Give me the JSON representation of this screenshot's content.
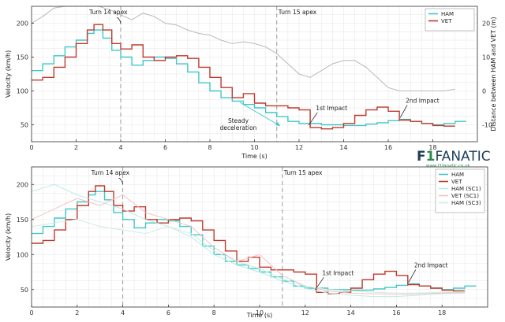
{
  "colors": {
    "ham": "#3fc7c6",
    "vet": "#c0392b",
    "ham_sc1": "#bfe9e8",
    "vet_sc1": "#f3c2c2",
    "ham_sc3": "#cdeee0",
    "distance": "#b9b9b9",
    "grid": "#e4e4e4",
    "brand_green": "#2d8a4e",
    "brand_dark": "#1f3d5c"
  },
  "branding": {
    "logo_text": "F1FANATIC",
    "url": "www.f1fanatic.co.uk"
  },
  "chart_data": [
    {
      "type": "line",
      "title": "",
      "xlabel": "Time (s)",
      "ylabel": "Velocity (km/h)",
      "y2label": "Distance between HAM and VET (m)",
      "xlim": [
        0,
        20
      ],
      "ylim": [
        25,
        225
      ],
      "y2lim": [
        -15,
        25
      ],
      "x_ticks": [
        "0",
        "2",
        "4",
        "6",
        "8",
        "10",
        "12",
        "14",
        "16",
        "18"
      ],
      "y_ticks": [
        "50",
        "100",
        "150",
        "200"
      ],
      "y2_ticks": [
        "-10",
        "0",
        "10",
        "20"
      ],
      "grid": true,
      "legend": "top-right",
      "series": [
        {
          "name": "HAM",
          "color_key": "ham",
          "x": [
            0,
            0.5,
            1,
            1.5,
            2,
            2.5,
            2.8,
            3.2,
            3.6,
            4,
            4.5,
            5,
            5.5,
            6,
            6.5,
            7,
            7.5,
            8,
            8.5,
            9,
            9.5,
            10,
            10.5,
            11,
            11.5,
            12,
            12.5,
            13,
            13.5,
            14,
            14.5,
            15,
            15.5,
            16,
            16.5,
            17,
            17.5,
            18,
            18.5,
            19,
            19.5
          ],
          "y": [
            130,
            140,
            152,
            165,
            175,
            185,
            190,
            178,
            160,
            150,
            138,
            145,
            150,
            148,
            140,
            128,
            112,
            100,
            90,
            85,
            80,
            75,
            68,
            62,
            55,
            52,
            52,
            50,
            50,
            49,
            49,
            51,
            53,
            56,
            58,
            55,
            52,
            50,
            52,
            55,
            55
          ]
        },
        {
          "name": "VET",
          "color_key": "vet",
          "x": [
            0,
            0.5,
            1,
            1.5,
            2,
            2.5,
            2.8,
            3.2,
            3.6,
            4,
            4.5,
            5,
            5.5,
            6,
            6.5,
            7,
            7.5,
            8,
            8.5,
            9,
            9.5,
            10,
            10.5,
            11,
            11.5,
            12,
            12.5,
            13,
            13.5,
            14,
            14.5,
            15,
            15.5,
            16,
            16.5,
            17,
            17.5,
            18,
            18.5,
            19
          ],
          "y": [
            116,
            120,
            135,
            150,
            170,
            190,
            198,
            190,
            170,
            162,
            168,
            150,
            145,
            150,
            152,
            148,
            135,
            120,
            105,
            90,
            96,
            82,
            78,
            78,
            75,
            72,
            46,
            44,
            46,
            52,
            64,
            72,
            76,
            70,
            57,
            55,
            52,
            49,
            48,
            48
          ]
        }
      ],
      "secondary_series": [
        {
          "name": "Distance between HAM and VET",
          "color_key": "distance",
          "x": [
            0,
            0.5,
            1,
            1.5,
            2,
            2.5,
            3,
            3.5,
            4,
            4.5,
            5,
            5.5,
            6,
            6.5,
            7,
            7.5,
            8,
            8.5,
            9,
            9.5,
            10,
            10.5,
            11,
            11.5,
            12,
            12.5,
            13,
            13.5,
            14,
            14.5,
            15,
            15.5,
            16,
            16.5,
            17,
            17.5,
            18,
            18.5,
            19
          ],
          "y": [
            20,
            22,
            24.5,
            26,
            26.5,
            26,
            25,
            24,
            22.5,
            21,
            23,
            22,
            20,
            19.5,
            18,
            17,
            16.5,
            15,
            14,
            14.5,
            14,
            13,
            11,
            8,
            5,
            4,
            6,
            8,
            9,
            9,
            7,
            4,
            1,
            0,
            0,
            0,
            0,
            0,
            0.5
          ]
        }
      ],
      "annotations": [
        {
          "text": "Turn 14 apex",
          "x": 4
        },
        {
          "text": "Turn 15 apex",
          "x": 11
        },
        {
          "text": "Steady deceleration",
          "x": 10
        },
        {
          "text": "1st Impact",
          "x": 12.4
        },
        {
          "text": "2nd Impact",
          "x": 16.5
        }
      ]
    },
    {
      "type": "line",
      "title": "",
      "xlabel": "Time (s)",
      "ylabel": "Velocity (km/h)",
      "xlim": [
        0,
        20
      ],
      "ylim": [
        25,
        225
      ],
      "x_ticks": [
        "0",
        "2",
        "4",
        "6",
        "8",
        "10",
        "12",
        "14",
        "16",
        "18"
      ],
      "y_ticks": [
        "50",
        "100",
        "150",
        "200"
      ],
      "grid": true,
      "legend": "top-right",
      "series": [
        {
          "name": "HAM",
          "color_key": "ham",
          "x": [
            0,
            0.5,
            1,
            1.5,
            2,
            2.5,
            2.8,
            3.2,
            3.6,
            4,
            4.5,
            5,
            5.5,
            6,
            6.5,
            7,
            7.5,
            8,
            8.5,
            9,
            9.5,
            10,
            10.5,
            11,
            11.5,
            12,
            12.5,
            13,
            13.5,
            14,
            14.5,
            15,
            15.5,
            16,
            16.5,
            17,
            17.5,
            18,
            18.5,
            19,
            19.5
          ],
          "y": [
            130,
            140,
            152,
            165,
            175,
            185,
            190,
            178,
            160,
            150,
            138,
            145,
            150,
            148,
            140,
            128,
            112,
            100,
            90,
            85,
            80,
            75,
            68,
            62,
            55,
            52,
            52,
            50,
            50,
            49,
            49,
            51,
            53,
            56,
            58,
            55,
            52,
            50,
            52,
            55,
            55
          ]
        },
        {
          "name": "VET",
          "color_key": "vet",
          "x": [
            0,
            0.5,
            1,
            1.5,
            2,
            2.5,
            2.8,
            3.2,
            3.6,
            4,
            4.5,
            5,
            5.5,
            6,
            6.5,
            7,
            7.5,
            8,
            8.5,
            9,
            9.5,
            10,
            10.5,
            11,
            11.5,
            12,
            12.5,
            13,
            13.5,
            14,
            14.5,
            15,
            15.5,
            16,
            16.5,
            17,
            17.5,
            18,
            18.5,
            19
          ],
          "y": [
            116,
            120,
            135,
            150,
            170,
            190,
            198,
            190,
            170,
            162,
            168,
            150,
            145,
            150,
            152,
            148,
            135,
            120,
            105,
            90,
            96,
            82,
            78,
            78,
            75,
            72,
            46,
            44,
            46,
            52,
            64,
            72,
            76,
            70,
            57,
            55,
            52,
            49,
            48,
            48
          ]
        },
        {
          "name": "HAM (SC1)",
          "color_key": "ham_sc1",
          "x": [
            0,
            1,
            2,
            3,
            4,
            5,
            6,
            7,
            8,
            9,
            10,
            11,
            12,
            13,
            14,
            15,
            16,
            17,
            18,
            19
          ],
          "y": [
            190,
            200,
            185,
            175,
            165,
            150,
            140,
            125,
            100,
            85,
            75,
            62,
            52,
            45,
            42,
            40,
            40,
            42,
            44,
            45
          ]
        },
        {
          "name": "VET (SC1)",
          "color_key": "vet_sc1",
          "x": [
            0,
            1,
            2,
            3,
            4,
            5,
            6,
            7,
            8,
            9,
            10,
            11,
            12,
            13,
            14,
            15,
            16,
            17,
            18,
            19
          ],
          "y": [
            150,
            165,
            180,
            170,
            185,
            160,
            150,
            140,
            110,
            90,
            100,
            70,
            55,
            48,
            45,
            44,
            43,
            44,
            45,
            46
          ]
        },
        {
          "name": "HAM (SC3)",
          "color_key": "ham_sc3",
          "x": [
            0,
            1,
            2,
            3,
            4,
            5,
            6,
            7,
            8,
            9,
            10,
            11,
            12,
            13,
            14,
            15,
            16,
            17,
            18,
            19
          ],
          "y": [
            140,
            145,
            150,
            140,
            135,
            130,
            140,
            130,
            105,
            90,
            80,
            65,
            55,
            50,
            48,
            46,
            45,
            45,
            46,
            47
          ]
        }
      ],
      "annotations": [
        {
          "text": "Turn 14 apex",
          "x": 4
        },
        {
          "text": "Turn 15 apex",
          "x": 11
        },
        {
          "text": "1st Impact",
          "x": 12.4
        },
        {
          "text": "2nd Impact",
          "x": 16.5
        }
      ]
    }
  ]
}
